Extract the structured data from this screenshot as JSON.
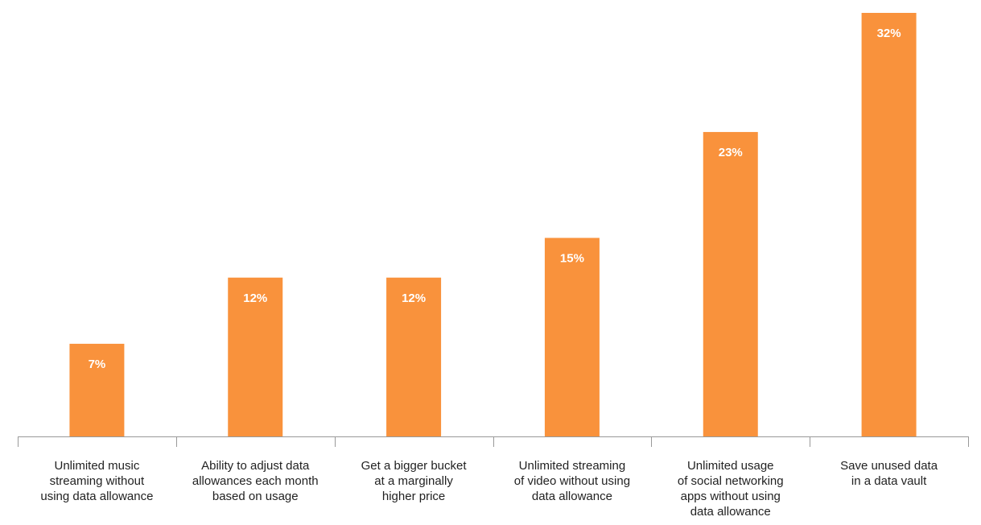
{
  "chart_data": {
    "type": "bar",
    "categories": [
      [
        "Unlimited music",
        "streaming without",
        "using data allowance"
      ],
      [
        "Ability to adjust data",
        "allowances each month",
        "based on usage"
      ],
      [
        "Get a bigger bucket",
        "at a marginally",
        "higher price"
      ],
      [
        "Unlimited streaming",
        "of video without using",
        "data allowance"
      ],
      [
        "Unlimited usage",
        "of social networking",
        "apps without using",
        "data allowance"
      ],
      [
        "Save unused data",
        "in a data vault"
      ]
    ],
    "values": [
      7,
      12,
      12,
      15,
      23,
      32
    ],
    "value_labels": [
      "7%",
      "12%",
      "12%",
      "15%",
      "23%",
      "32%"
    ],
    "ylim": [
      0,
      32
    ],
    "grid": false,
    "title": "",
    "xlabel": "",
    "ylabel": ""
  },
  "colors": {
    "bar": "#f9923c",
    "axis": "#999999"
  }
}
